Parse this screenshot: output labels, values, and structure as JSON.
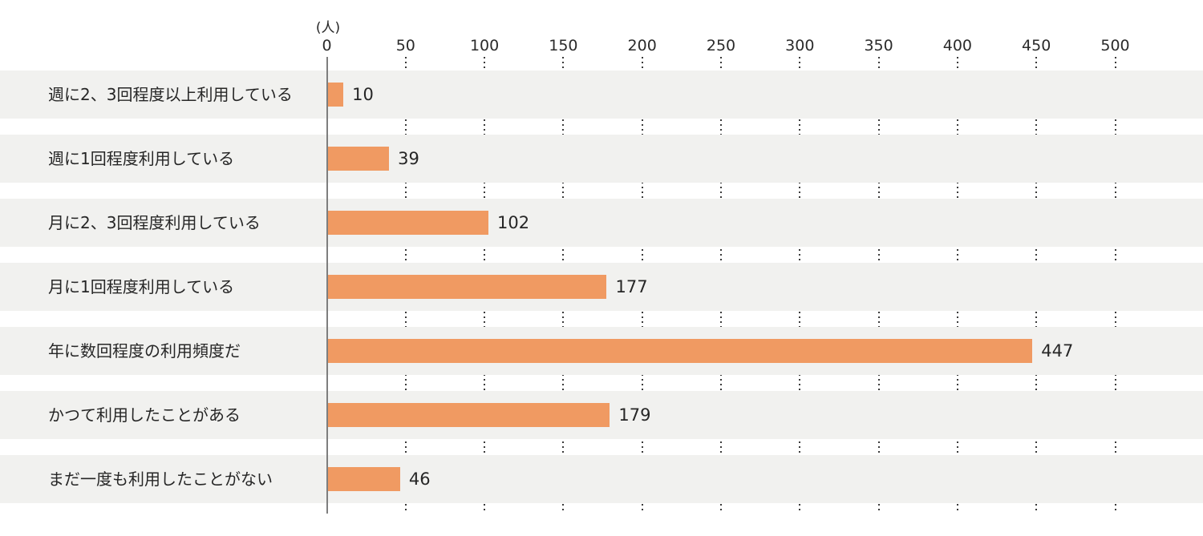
{
  "chart_data": {
    "type": "bar",
    "orientation": "horizontal",
    "title": "",
    "unit_label": "(人)",
    "categories": [
      "週に2、3回程度以上利用している",
      "週に1回程度利用している",
      "月に2、3回程度利用している",
      "月に1回程度利用している",
      "年に数回程度の利用頻度だ",
      "かつて利用したことがある",
      "まだ一度も利用したことがない"
    ],
    "values": [
      10,
      39,
      102,
      177,
      447,
      179,
      46
    ],
    "xlim": [
      0,
      500
    ],
    "xticks": [
      0,
      50,
      100,
      150,
      200,
      250,
      300,
      350,
      400,
      450,
      500
    ],
    "grid": "dotted-vertical-in-row-gaps",
    "legend": "none",
    "colors": {
      "bar": "#F09A62",
      "row_band": "#F1F1EF",
      "axis_line": "#7E7E7E",
      "grid_dots": "#3B3B3B",
      "text": "#262626",
      "background": "#FFFFFF"
    }
  }
}
